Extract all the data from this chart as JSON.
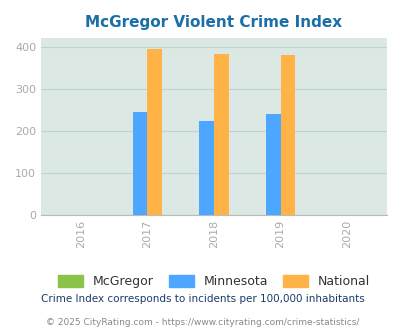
{
  "title": "McGregor Violent Crime Index",
  "years": [
    2016,
    2017,
    2018,
    2019,
    2020
  ],
  "bar_years": [
    2017,
    2018,
    2019
  ],
  "mcgregor": [
    0,
    0,
    0
  ],
  "minnesota": [
    243,
    222,
    240
  ],
  "national": [
    394,
    381,
    379
  ],
  "mcgregor_color": "#8bc34a",
  "minnesota_color": "#4da6ff",
  "national_color": "#ffb347",
  "bg_color": "#dce8e4",
  "ylim": [
    0,
    420
  ],
  "yticks": [
    0,
    100,
    200,
    300,
    400
  ],
  "bar_width": 0.22,
  "legend_labels": [
    "McGregor",
    "Minnesota",
    "National"
  ],
  "footnote1": "Crime Index corresponds to incidents per 100,000 inhabitants",
  "footnote2": "© 2025 CityRating.com - https://www.cityrating.com/crime-statistics/",
  "title_color": "#1a6fa8",
  "footnote1_color": "#1a3a6a",
  "footnote2_color": "#888888",
  "tick_color": "#aaaaaa",
  "grid_color": "#c0d4ce",
  "xlim": [
    2015.4,
    2020.6
  ]
}
